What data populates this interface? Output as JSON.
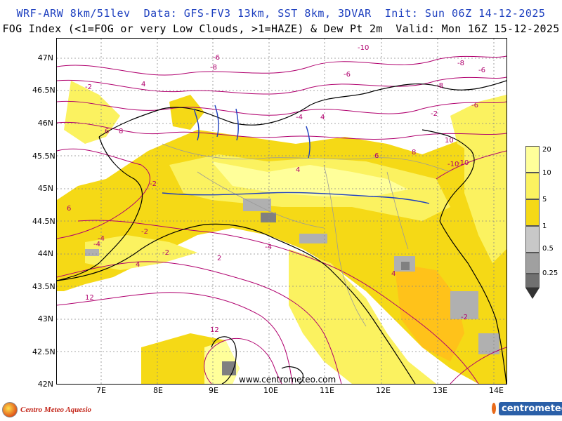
{
  "header": {
    "line1": "WRF-ARW 8km/51lev  Data: GFS-FV3 13km, SST 8km, 3DVAR  Init: Sun 06Z 14-12-2025",
    "line2": "FOG Index (<1=FOG or very Low Clouds, >1=HAZE) & Dew Pt 2m  Valid: Mon 16Z 15-12-2025"
  },
  "axes": {
    "latitudes": [
      "47N",
      "46.5N",
      "46N",
      "45.5N",
      "45N",
      "44.5N",
      "44N",
      "43.5N",
      "43N",
      "42.5N",
      "42N"
    ],
    "longitudes": [
      "7E",
      "8E",
      "9E",
      "10E",
      "11E",
      "12E",
      "13E",
      "14E"
    ]
  },
  "contour_labels": [
    "-6",
    "-8",
    "-10",
    "-6",
    "-8",
    "-2",
    "4",
    "-4",
    "4",
    "6",
    "8",
    "-2",
    "-10",
    "-6",
    "-8",
    "-2",
    "-4",
    "-2",
    "6",
    "2",
    "-4",
    "-2",
    "-6",
    "-2",
    "4",
    "6",
    "4",
    "-10",
    "8",
    "10",
    "12",
    "12",
    "4",
    "-4"
  ],
  "watermark": "www.centrometeo.com",
  "legend": {
    "labels": [
      "20",
      "10",
      "5",
      "1",
      "0.5",
      "0.25"
    ],
    "colors": {
      "fog_index_gt10": "#ffff9a",
      "fog_index_5_10": "#fbf260",
      "fog_index_1_5": "#f5d916",
      "fog_index_1": "#ffc21a",
      "fog_index_05": "#b0b0b0",
      "fog_index_025": "#808080",
      "dew_point_contour": "#b0006e",
      "borders": "#000000",
      "regions": "#9a9a9a",
      "rivers_lakes": "#1d3fbf"
    }
  },
  "footer": {
    "left_brand": "Centro Meteo Aquesio",
    "right_brand": "centrometeo"
  }
}
